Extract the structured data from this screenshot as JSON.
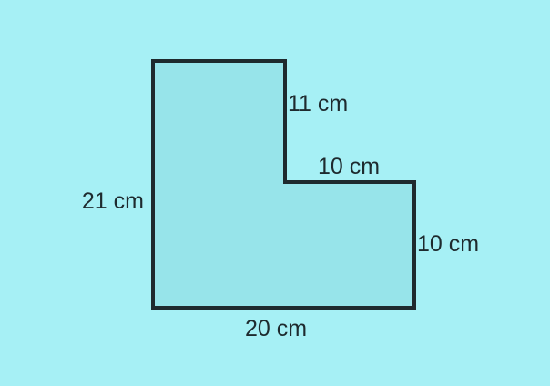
{
  "shape": {
    "type": "L-shape",
    "fill_color": "#97e4ea",
    "stroke_color": "#1e2a2e"
  },
  "labels": {
    "left_side": "21 cm",
    "top_right_vertical": "11 cm",
    "inner_horizontal": "10 cm",
    "right_side": "10 cm",
    "bottom_side": "20 cm"
  },
  "background_color": "#a6f0f5"
}
